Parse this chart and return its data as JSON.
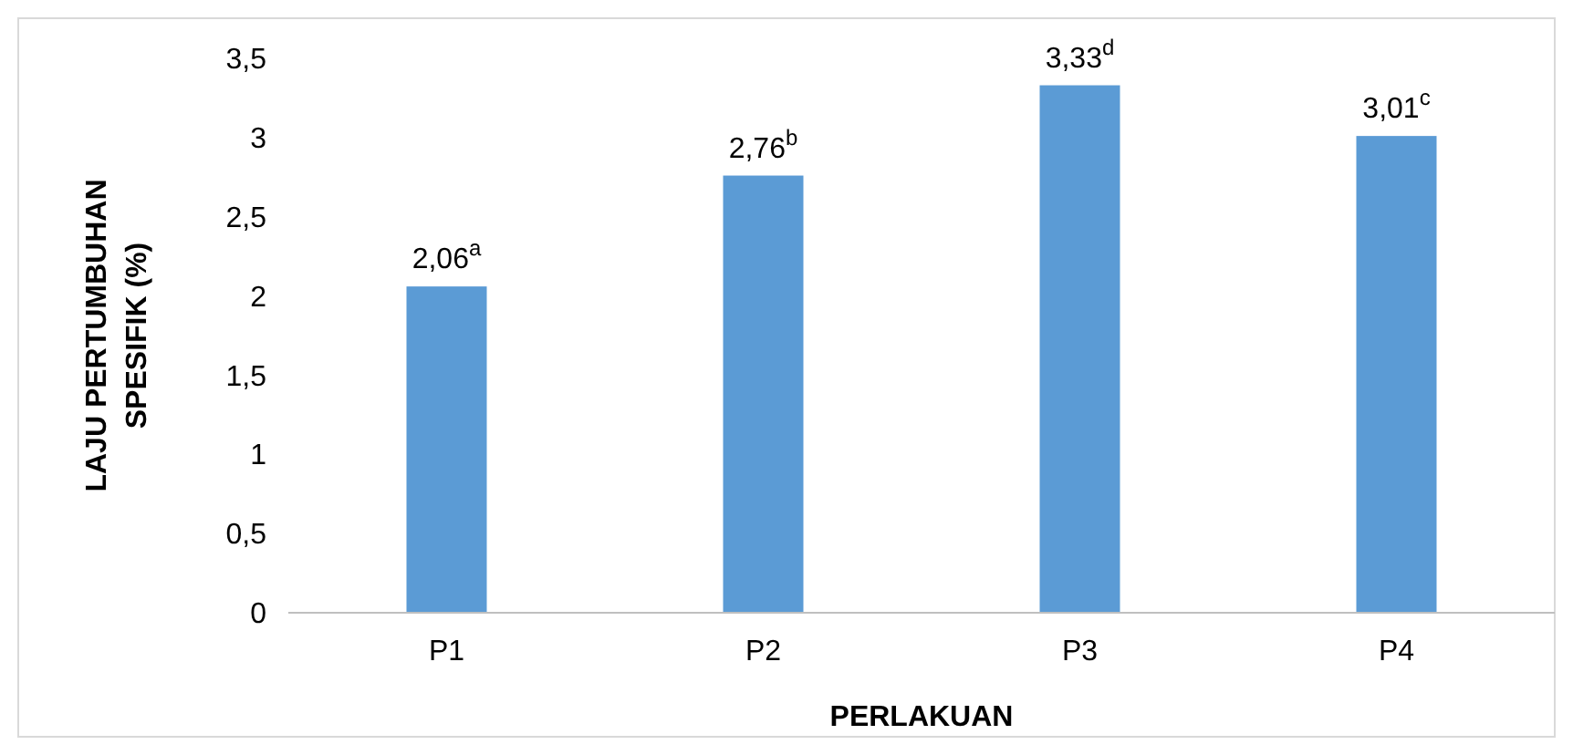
{
  "chart_data": {
    "type": "bar",
    "xlabel": "PERLAKUAN",
    "ylabel": "LAJU PERTUMBUHAN SPESIFIK (%)",
    "categories": [
      "P1",
      "P2",
      "P3",
      "P4"
    ],
    "values": [
      2.06,
      2.76,
      3.33,
      3.01
    ],
    "value_labels": [
      "2,06$^{a}$",
      "2,76$^{b}$",
      "3,33$^{d}$",
      "3,01$^{c}$"
    ],
    "color": "#5b9bd5",
    "ylim": [
      0,
      3.5
    ],
    "yticks": [
      0,
      {
        "value": 0.5,
        "label": "0,5"
      },
      1,
      {
        "value": 1.5,
        "label": "1,5"
      },
      2,
      {
        "value": 2.5,
        "label": "2,5"
      },
      3,
      {
        "value": 3.5,
        "label": "3,5"
      }
    ],
    "grid": false
  }
}
